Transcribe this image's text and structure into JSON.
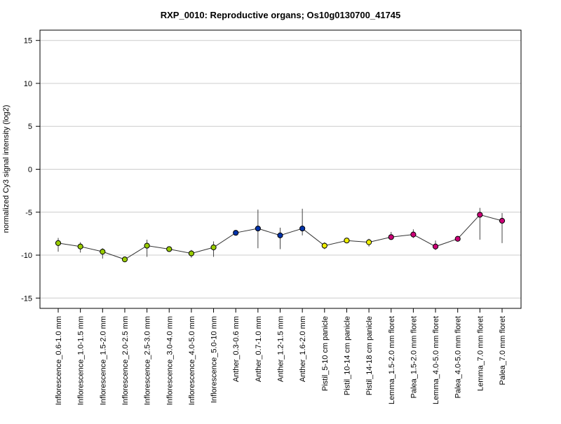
{
  "chart_data": {
    "type": "scatter",
    "title": "RXP_0010: Reproductive organs; Os10g0130700_41745",
    "xlabel": "",
    "ylabel": "normalized Cy3 signal intensity (log2)",
    "ylim": [
      -16.2,
      16.2
    ],
    "yticks": [
      -15,
      -10,
      -5,
      0,
      5,
      10,
      15
    ],
    "grid": true,
    "legend": "none",
    "line_color": "#333333",
    "errorbar_color": "#444444",
    "categories": [
      "Inflorescence_0.6-1.0 mm",
      "Inflorescence_1.0-1.5 mm",
      "Inflorescence_1.5-2.0 mm",
      "Inflorescence_2.0-2.5 mm",
      "Inflorescence_2.5-3.0 mm",
      "Inflorescence_3.0-4.0 mm",
      "Inflorescence_4.0-5.0 mm",
      "Inflorescence_5.0-10 mm",
      "Anther_0.3-0.6 mm",
      "Anther_0.7-1.0 mm",
      "Anther_1.2-1.5 mm",
      "Anther_1.6-2.0 mm",
      "Pistil_5-10 cm panicle",
      "Pistil_10-14 cm panicle",
      "Pistil_14-18 cm panicle",
      "Lemma_1.5-2.0 mm floret",
      "Palea_1.5-2.0 mm floret",
      "Lemma_4.0-5.0 mm floret",
      "Palea_4.0-5.0 mm floret",
      "Lemma_7.0 mm floret",
      "Palea_7.0 mm floret"
    ],
    "values": [
      -8.6,
      -9.0,
      -9.6,
      -10.5,
      -8.9,
      -9.3,
      -9.8,
      -9.1,
      -7.4,
      -6.9,
      -7.7,
      -6.9,
      -8.9,
      -8.3,
      -8.5,
      -7.9,
      -7.6,
      -9.0,
      -8.1,
      -5.3,
      -6.0
    ],
    "err_low": [
      -9.6,
      -9.7,
      -10.4,
      -10.6,
      -10.2,
      -9.4,
      -10.3,
      -10.2,
      -7.5,
      -9.2,
      -9.3,
      -7.7,
      -9.3,
      -8.4,
      -9.0,
      -8.1,
      -8.0,
      -9.4,
      -8.2,
      -8.2,
      -8.6
    ],
    "err_high": [
      -8.0,
      -8.5,
      -9.2,
      -10.4,
      -8.2,
      -9.2,
      -9.4,
      -8.4,
      -7.3,
      -4.7,
      -6.8,
      -4.6,
      -8.5,
      -8.1,
      -8.1,
      -7.3,
      -7.0,
      -8.3,
      -8.0,
      -4.5,
      -5.1
    ],
    "point_colors": [
      "#99cc00",
      "#99cc00",
      "#99cc00",
      "#99cc00",
      "#99cc00",
      "#99cc00",
      "#99cc00",
      "#99cc00",
      "#0033aa",
      "#0033aa",
      "#0033aa",
      "#0033aa",
      "#eeee00",
      "#eeee00",
      "#eeee00",
      "#cc0077",
      "#cc0077",
      "#cc0077",
      "#cc0077",
      "#cc0077",
      "#cc0077"
    ]
  }
}
